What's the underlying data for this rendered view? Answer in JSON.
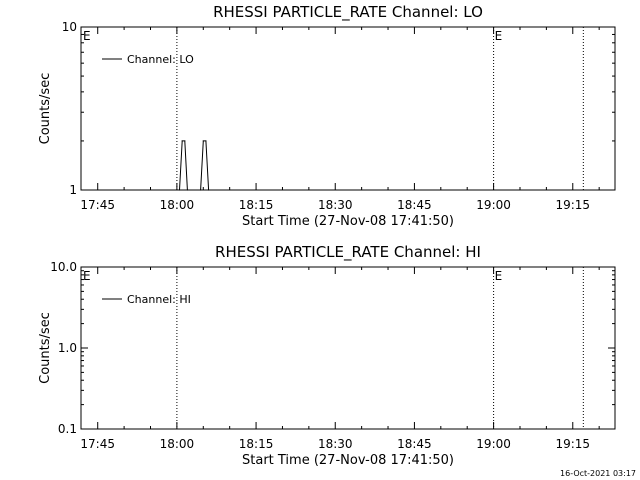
{
  "chart_data": [
    {
      "type": "line",
      "title": "RHESSI PARTICLE_RATE Channel: LO",
      "xlabel": "Start Time (27-Nov-08 17:41:50)",
      "ylabel": "Counts/sec",
      "y_scale": "log",
      "ylim": [
        1,
        10
      ],
      "y_ticks": [
        {
          "value": 1,
          "label": "1"
        },
        {
          "value": 10,
          "label": "10"
        }
      ],
      "xlim": [
        "17:41:50",
        "19:23:00"
      ],
      "x_ticks": [
        "17:45",
        "18:00",
        "18:15",
        "18:30",
        "18:45",
        "19:00",
        "19:15"
      ],
      "legend": {
        "position": "top-left",
        "entries": [
          "Channel: LO"
        ]
      },
      "vlines": [
        "18:00",
        "19:00",
        "19:17"
      ],
      "markers": [
        {
          "time": "17:41:50",
          "label": "E"
        },
        {
          "time": "19:00",
          "label": "E"
        }
      ],
      "series": [
        {
          "name": "Channel: LO",
          "x": [
            "18:00:30",
            "18:01:00",
            "18:01:30",
            "18:02:00",
            "18:04:30",
            "18:05:00",
            "18:05:30",
            "18:06:00"
          ],
          "values": [
            1,
            2,
            2,
            1,
            1,
            2,
            2,
            1
          ]
        }
      ]
    },
    {
      "type": "line",
      "title": "RHESSI PARTICLE_RATE Channel: HI",
      "xlabel": "Start Time (27-Nov-08 17:41:50)",
      "ylabel": "Counts/sec",
      "y_scale": "log",
      "ylim": [
        0.1,
        10
      ],
      "y_ticks": [
        {
          "value": 0.1,
          "label": "0.1"
        },
        {
          "value": 1,
          "label": "1.0"
        },
        {
          "value": 10,
          "label": "10.0"
        }
      ],
      "xlim": [
        "17:41:50",
        "19:23:00"
      ],
      "x_ticks": [
        "17:45",
        "18:00",
        "18:15",
        "18:30",
        "18:45",
        "19:00",
        "19:15"
      ],
      "legend": {
        "position": "top-left",
        "entries": [
          "Channel: HI"
        ]
      },
      "vlines": [
        "18:00",
        "19:00",
        "19:17"
      ],
      "markers": [
        {
          "time": "17:41:50",
          "label": "E"
        },
        {
          "time": "19:00",
          "label": "E"
        }
      ],
      "series": [
        {
          "name": "Channel: HI",
          "x": [],
          "values": []
        }
      ]
    }
  ],
  "footer": {
    "timestamp": "16-Oct-2021 03:17"
  }
}
